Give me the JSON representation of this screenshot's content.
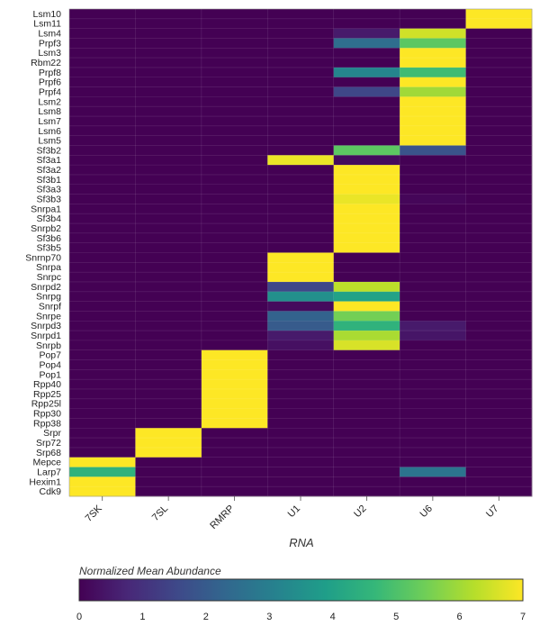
{
  "chart_data": {
    "type": "heatmap",
    "xlabel": "RNA",
    "colorbar_title": "Normalized Mean Abundance",
    "color_range": [
      0,
      7
    ],
    "colorbar_ticks": [
      "0",
      "1",
      "2",
      "3",
      "4",
      "5",
      "6",
      "7"
    ],
    "colorscale": [
      "#440154",
      "#482878",
      "#3e4989",
      "#31688e",
      "#26828e",
      "#1f9e89",
      "#35b779",
      "#6ece58",
      "#b5de2b",
      "#fde725"
    ],
    "x": [
      "7SK",
      "7SL",
      "RMRP",
      "U1",
      "U2",
      "U6",
      "U7"
    ],
    "y": [
      "Lsm10",
      "Lsm11",
      "Lsm4",
      "Prpf3",
      "Lsm3",
      "Rbm22",
      "Prpf8",
      "Prpf6",
      "Prpf4",
      "Lsm2",
      "Lsm8",
      "Lsm7",
      "Lsm6",
      "Lsm5",
      "Sf3b2",
      "Sf3a1",
      "Sf3a2",
      "Sf3b1",
      "Sf3a3",
      "Sf3b3",
      "Snrpa1",
      "Sf3b4",
      "Snrpb2",
      "Sf3b6",
      "Sf3b5",
      "Snrnp70",
      "Snrpa",
      "Snrpc",
      "Snrpd2",
      "Snrpg",
      "Snrpf",
      "Snrpe",
      "Snrpd3",
      "Snrpd1",
      "Snrpb",
      "Pop7",
      "Pop4",
      "Pop1",
      "Rpp40",
      "Rpp25",
      "Rpp25l",
      "Rpp30",
      "Rpp38",
      "Srpr",
      "Srp72",
      "Srp68",
      "Mepce",
      "Larp7",
      "Hexim1",
      "Cdk9"
    ],
    "z": [
      [
        0,
        0,
        0,
        0,
        0,
        0,
        7
      ],
      [
        0,
        0,
        0,
        0,
        0,
        0,
        7
      ],
      [
        0,
        0,
        0,
        0,
        0.5,
        6.5,
        0
      ],
      [
        0,
        0,
        0,
        0,
        2.5,
        5.2,
        0
      ],
      [
        0,
        0,
        0,
        0,
        0,
        7,
        0
      ],
      [
        0,
        0,
        0,
        0,
        0,
        7,
        0
      ],
      [
        0,
        0,
        0,
        0,
        3.2,
        4.8,
        0
      ],
      [
        0,
        0,
        0,
        0,
        0,
        7,
        0
      ],
      [
        0,
        0,
        0,
        0,
        1.5,
        6,
        0
      ],
      [
        0,
        0,
        0,
        0,
        0,
        7,
        0
      ],
      [
        0,
        0,
        0,
        0,
        0,
        7,
        0
      ],
      [
        0,
        0,
        0,
        0,
        0,
        7,
        0
      ],
      [
        0,
        0,
        0,
        0,
        0,
        7,
        0
      ],
      [
        0,
        0,
        0,
        0,
        0,
        7,
        0
      ],
      [
        0,
        0,
        0,
        0,
        5.2,
        1.8,
        0
      ],
      [
        0,
        0,
        0,
        6.8,
        0.2,
        0,
        0
      ],
      [
        0,
        0,
        0,
        0,
        7,
        0,
        0
      ],
      [
        0,
        0,
        0,
        0,
        7,
        0,
        0
      ],
      [
        0,
        0,
        0,
        0,
        7,
        0,
        0
      ],
      [
        0,
        0,
        0,
        0,
        6.8,
        0.1,
        0
      ],
      [
        0,
        0,
        0,
        0,
        7,
        0,
        0
      ],
      [
        0,
        0,
        0,
        0,
        7,
        0,
        0
      ],
      [
        0,
        0,
        0,
        0,
        7,
        0,
        0
      ],
      [
        0,
        0,
        0,
        0,
        7,
        0,
        0
      ],
      [
        0,
        0,
        0,
        0,
        7,
        0,
        0
      ],
      [
        0,
        0,
        0,
        7,
        0,
        0,
        0
      ],
      [
        0,
        0,
        0,
        7,
        0,
        0,
        0
      ],
      [
        0,
        0,
        0,
        7,
        0,
        0,
        0
      ],
      [
        0,
        0,
        0,
        1.5,
        6.3,
        0,
        0
      ],
      [
        0,
        0,
        0,
        3.5,
        4,
        0,
        0
      ],
      [
        0,
        0,
        0,
        0.2,
        7,
        0,
        0
      ],
      [
        0,
        0,
        0,
        2.2,
        5.5,
        0,
        0
      ],
      [
        0,
        0,
        0,
        2,
        4.5,
        0.5,
        0
      ],
      [
        0,
        0,
        0,
        0.5,
        6.1,
        0.4,
        0
      ],
      [
        0,
        0,
        0,
        0.3,
        6.6,
        0,
        0
      ],
      [
        0,
        0,
        7,
        0,
        0,
        0,
        0
      ],
      [
        0,
        0,
        7,
        0,
        0,
        0,
        0
      ],
      [
        0,
        0,
        7,
        0,
        0,
        0,
        0
      ],
      [
        0,
        0,
        7,
        0,
        0,
        0,
        0
      ],
      [
        0,
        0,
        7,
        0,
        0,
        0,
        0
      ],
      [
        0,
        0,
        7,
        0,
        0,
        0,
        0
      ],
      [
        0,
        0,
        7,
        0,
        0,
        0,
        0
      ],
      [
        0,
        0,
        7,
        0,
        0,
        0,
        0
      ],
      [
        0,
        7,
        0,
        0,
        0,
        0,
        0
      ],
      [
        0,
        7,
        0,
        0,
        0,
        0,
        0
      ],
      [
        0,
        7,
        0,
        0,
        0,
        0,
        0
      ],
      [
        7,
        0,
        0,
        0,
        0,
        0,
        0
      ],
      [
        4.5,
        0,
        0,
        0,
        0,
        2.7,
        0
      ],
      [
        7,
        0,
        0,
        0,
        0,
        0,
        0
      ],
      [
        7,
        0,
        0,
        0,
        0,
        0,
        0
      ]
    ]
  }
}
